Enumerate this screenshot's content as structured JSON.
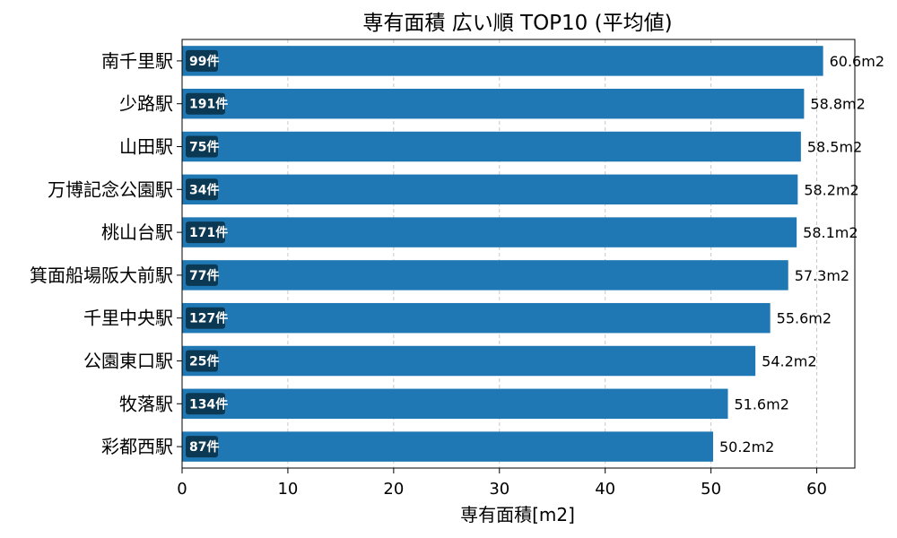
{
  "chart_data": {
    "type": "bar",
    "orientation": "horizontal",
    "title": "専有面積 広い順 TOP10 (平均値)",
    "xlabel": "専有面積[m2]",
    "ylabel": "",
    "xlim": [
      0,
      63.6
    ],
    "xticks": [
      0,
      10,
      20,
      30,
      40,
      50,
      60
    ],
    "grid": "x-dashed",
    "bar_color": "#1f77b4",
    "count_badge_color": "#0b3954",
    "value_suffix": "m2",
    "categories": [
      "南千里駅",
      "少路駅",
      "山田駅",
      "万博記念公園駅",
      "桃山台駅",
      "箕面船場阪大前駅",
      "千里中央駅",
      "公園東口駅",
      "牧落駅",
      "彩都西駅"
    ],
    "values": [
      60.6,
      58.8,
      58.5,
      58.2,
      58.1,
      57.3,
      55.6,
      54.2,
      51.6,
      50.2
    ],
    "value_labels": [
      "60.6m2",
      "58.8m2",
      "58.5m2",
      "58.2m2",
      "58.1m2",
      "57.3m2",
      "55.6m2",
      "54.2m2",
      "51.6m2",
      "50.2m2"
    ],
    "counts": [
      "99件",
      "191件",
      "75件",
      "34件",
      "171件",
      "77件",
      "127件",
      "25件",
      "134件",
      "87件"
    ]
  }
}
